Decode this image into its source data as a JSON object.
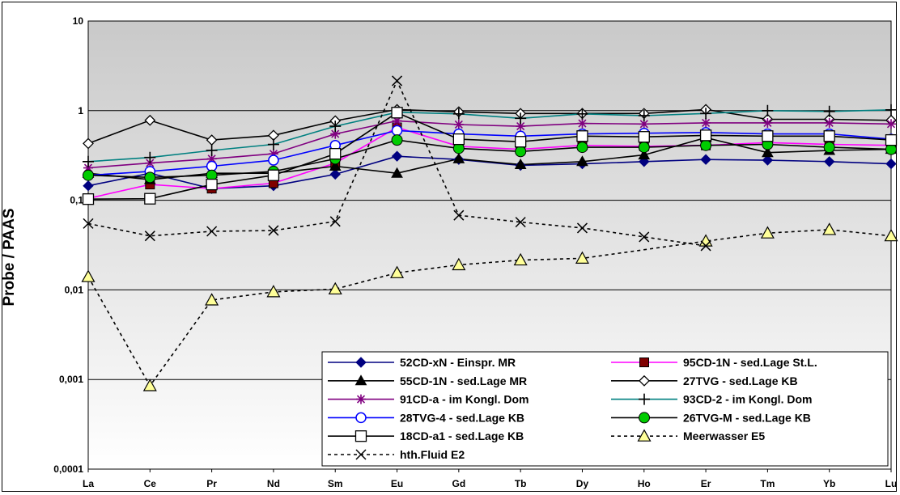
{
  "chart_data": {
    "type": "line",
    "title": "",
    "xlabel": "",
    "ylabel": "Probe / PAAS",
    "yscale": "log",
    "ylim": [
      0.0001,
      10
    ],
    "yticks": [
      "10",
      "1",
      "0,1",
      "0,01",
      "0,001",
      "0,0001"
    ],
    "categories": [
      "La",
      "Ce",
      "Pr",
      "Nd",
      "Sm",
      "Eu",
      "Gd",
      "Tb",
      "Dy",
      "Ho",
      "Er",
      "Tm",
      "Yb",
      "Lu"
    ],
    "grid": true,
    "plot_background": "gradient grey to white",
    "legend_position": "bottom-right",
    "series": [
      {
        "name": "52CD-xN - Einspr. MR",
        "color": "#000080",
        "marker": "diamond-filled",
        "line": "solid",
        "values": [
          0.145,
          0.2,
          0.135,
          0.145,
          0.195,
          0.31,
          0.285,
          0.245,
          0.255,
          0.27,
          0.285,
          0.28,
          0.27,
          0.255
        ]
      },
      {
        "name": "95CD-1N - sed.Lage St.L.",
        "color": "#ff00ff",
        "marker": "square-darkred",
        "line": "solid",
        "values": [
          0.105,
          0.15,
          0.135,
          0.155,
          0.26,
          0.65,
          0.4,
          0.37,
          0.41,
          0.4,
          0.41,
          0.44,
          0.42,
          0.41
        ]
      },
      {
        "name": "55CD-1N - sed.Lage MR",
        "color": "#000000",
        "marker": "triangle-filled",
        "line": "solid",
        "values": [
          0.2,
          0.17,
          0.2,
          0.2,
          0.24,
          0.2,
          0.29,
          0.25,
          0.27,
          0.32,
          0.5,
          0.34,
          0.36,
          0.37
        ]
      },
      {
        "name": "27TVG - sed.Lage KB",
        "color": "#000000",
        "marker": "diamond-open",
        "line": "solid",
        "values": [
          0.43,
          0.78,
          0.47,
          0.53,
          0.77,
          1.03,
          0.97,
          0.93,
          0.93,
          0.93,
          1.03,
          0.8,
          0.8,
          0.78
        ]
      },
      {
        "name": "91CD-a - im Kongl. Dom",
        "color": "#800080",
        "marker": "asterisk",
        "line": "solid",
        "values": [
          0.23,
          0.26,
          0.29,
          0.33,
          0.55,
          0.77,
          0.7,
          0.67,
          0.72,
          0.71,
          0.73,
          0.73,
          0.73,
          0.71
        ]
      },
      {
        "name": "93CD-2 - im Kongl. Dom",
        "color": "#008080",
        "marker": "plus",
        "line": "solid",
        "values": [
          0.27,
          0.3,
          0.36,
          0.42,
          0.67,
          0.96,
          0.92,
          0.82,
          0.92,
          0.88,
          0.93,
          1.0,
          0.98,
          1.02
        ]
      },
      {
        "name": "28TVG-4 - sed.Lage KB",
        "color": "#0000ff",
        "marker": "circle-open",
        "line": "solid",
        "values": [
          0.19,
          0.21,
          0.24,
          0.28,
          0.41,
          0.6,
          0.55,
          0.52,
          0.55,
          0.56,
          0.57,
          0.55,
          0.55,
          0.48
        ]
      },
      {
        "name": "26TVG-M - sed.Lage KB",
        "color": "#000000",
        "marker": "circle-green",
        "line": "solid",
        "values": [
          0.19,
          0.18,
          0.19,
          0.21,
          0.29,
          0.47,
          0.38,
          0.35,
          0.39,
          0.39,
          0.41,
          0.42,
          0.39,
          0.37
        ]
      },
      {
        "name": "18CD-a1 - sed.Lage KB",
        "color": "#000000",
        "marker": "square-open",
        "line": "solid",
        "values": [
          0.103,
          0.104,
          0.15,
          0.19,
          0.33,
          0.95,
          0.48,
          0.45,
          0.52,
          0.51,
          0.53,
          0.52,
          0.52,
          0.47
        ]
      },
      {
        "name": "Meerwasser E5",
        "color": "#000000",
        "marker": "triangle-yellow",
        "line": "dashed",
        "values": [
          0.014,
          0.00085,
          0.0077,
          0.0095,
          0.0102,
          0.0155,
          0.019,
          0.0215,
          0.0225,
          null,
          0.035,
          0.043,
          0.047,
          0.04
        ]
      },
      {
        "name": "hth.Fluid E2",
        "color": "#000000",
        "marker": "x",
        "line": "dashed",
        "values": [
          0.055,
          0.04,
          0.045,
          0.046,
          0.058,
          2.15,
          0.068,
          0.057,
          0.049,
          0.039,
          0.031,
          null,
          null,
          null
        ]
      }
    ]
  }
}
